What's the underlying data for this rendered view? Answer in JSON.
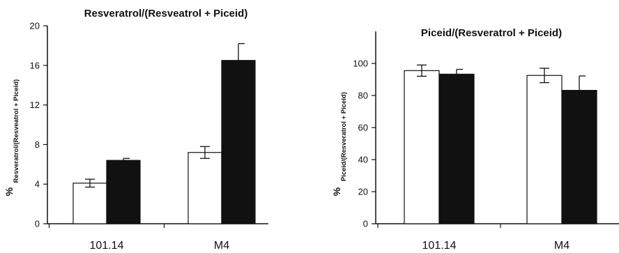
{
  "chart_data": [
    {
      "type": "bar",
      "title": "Resveratrol/(Resveatrol + Piceid)",
      "ylabel_prefix": "%",
      "ylabel": "Resveratrol/(Resveatrol + Piceid)",
      "categories": [
        "101.14",
        "M4"
      ],
      "ylim": [
        0,
        20
      ],
      "yticks": [
        0,
        4,
        8,
        12,
        16,
        20
      ],
      "grid": false,
      "series": [
        {
          "color": "#ffffff",
          "values": [
            4.1,
            7.2
          ],
          "errors": [
            0.4,
            0.6
          ]
        },
        {
          "color": "#111111",
          "values": [
            6.4,
            16.5
          ],
          "errors": [
            0.2,
            1.7
          ]
        }
      ]
    },
    {
      "type": "bar",
      "title": "Piceid/(Resveratrol + Piceid)",
      "ylabel_prefix": "%",
      "ylabel": "Piceid/(Resveratrol + Piceid)",
      "categories": [
        "101.14",
        "M4"
      ],
      "ylim": [
        0,
        120
      ],
      "yticks": [
        0,
        20,
        40,
        60,
        80,
        100
      ],
      "grid": false,
      "series": [
        {
          "color": "#ffffff",
          "values": [
            95.5,
            92.5
          ],
          "errors": [
            3.5,
            4.5
          ]
        },
        {
          "color": "#111111",
          "values": [
            93.3,
            83.2
          ],
          "errors": [
            3.0,
            9.0
          ]
        }
      ]
    }
  ]
}
